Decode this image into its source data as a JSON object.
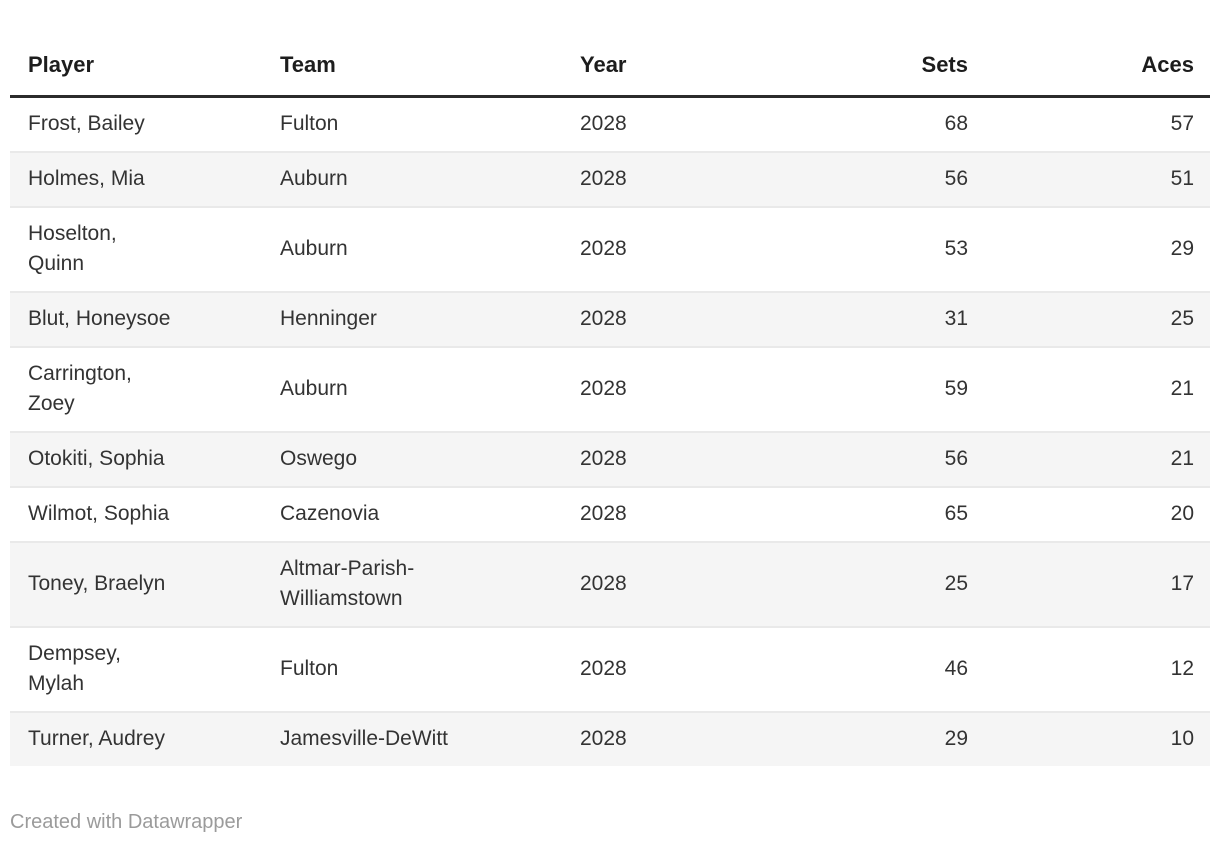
{
  "chart_data": {
    "type": "table",
    "columns": [
      "Player",
      "Team",
      "Year",
      "Sets",
      "Aces"
    ],
    "column_align": [
      "left",
      "left",
      "left",
      "right",
      "right"
    ],
    "rows": [
      [
        "Frost, Bailey",
        "Fulton",
        "2028",
        68,
        57
      ],
      [
        "Holmes, Mia",
        "Auburn",
        "2028",
        56,
        51
      ],
      [
        "Hoselton,\nQuinn",
        "Auburn",
        "2028",
        53,
        29
      ],
      [
        "Blut, Honeysoe",
        "Henninger",
        "2028",
        31,
        25
      ],
      [
        "Carrington,\nZoey",
        "Auburn",
        "2028",
        59,
        21
      ],
      [
        "Otokiti, Sophia",
        "Oswego",
        "2028",
        56,
        21
      ],
      [
        "Wilmot, Sophia",
        "Cazenovia",
        "2028",
        65,
        20
      ],
      [
        "Toney, Braelyn",
        "Altmar-Parish-\nWilliamstown",
        "2028",
        25,
        17
      ],
      [
        "Dempsey,\nMylah",
        "Fulton",
        "2028",
        46,
        12
      ],
      [
        "Turner, Audrey",
        "Jamesville-DeWitt",
        "2028",
        29,
        10
      ]
    ],
    "title": "",
    "striped": true,
    "layout_hints": {
      "grid": "horizontal row separators only",
      "header_rule": true
    }
  },
  "footer": {
    "credit_label": "Created with Datawrapper"
  },
  "colors": {
    "background": "#ffffff",
    "text": "#333333",
    "header_text": "#1d1d1d",
    "header_rule": "#2b2b2b",
    "stripe": "#f5f5f5",
    "row_border": "#e9e9e9",
    "footer_text": "#9b9b9b"
  }
}
